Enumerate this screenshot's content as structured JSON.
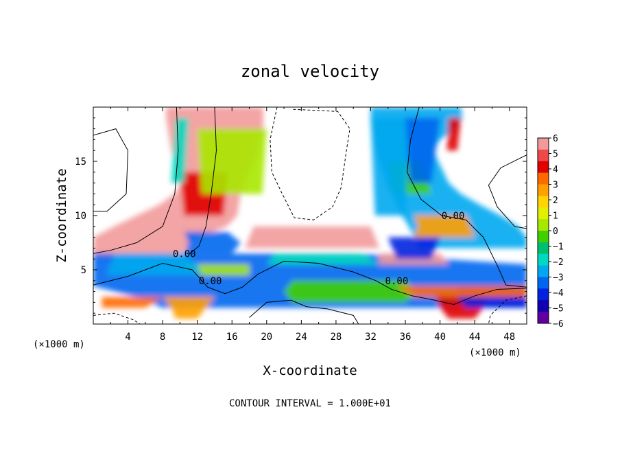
{
  "chart_data": {
    "type": "heatmap",
    "title": "zonal velocity",
    "xlabel": "X-coordinate",
    "ylabel": "Z-coordinate",
    "x_unit": "(×1000 m)",
    "x_unit_right": "(×1000 m)",
    "footer": "CONTOUR INTERVAL = 1.000E+01",
    "xlim": [
      0,
      50
    ],
    "ylim": [
      0,
      20
    ],
    "xticks": [
      4,
      8,
      12,
      16,
      20,
      24,
      28,
      32,
      36,
      40,
      44,
      48
    ],
    "yticks": [
      5,
      10,
      15
    ],
    "colorbar": {
      "min": -6,
      "max": 6,
      "levels": [
        6,
        5,
        4,
        3,
        2,
        1,
        0,
        -1,
        -2,
        -3,
        -4,
        -5,
        -6
      ],
      "colors": [
        "#f29a9a",
        "#ee4848",
        "#e00000",
        "#ff6a00",
        "#ffa000",
        "#ffd400",
        "#e0f000",
        "#a8e800",
        "#40d000",
        "#00c070",
        "#00d8c0",
        "#00a8f0",
        "#0066f0",
        "#0022e0",
        "#1000b0",
        "#6000a0"
      ]
    },
    "contour_labels": [
      {
        "text": "0.00",
        "x": 10.5,
        "y": 6.5
      },
      {
        "text": "0.00",
        "x": 13.5,
        "y": 4.0
      },
      {
        "text": "0.00",
        "x": 35.0,
        "y": 4.0
      },
      {
        "text": "0.00",
        "x": 41.5,
        "y": 10.0
      }
    ],
    "regions": [
      {
        "kind": "band",
        "xs": [
          [
            8.4,
            19.6
          ],
          [
            8.4,
            19.6
          ],
          [
            8.6,
            19.6
          ],
          [
            8.8,
            19.2
          ],
          [
            9.0,
            19.0
          ],
          [
            9.4,
            18.6
          ],
          [
            9.8,
            18.0
          ],
          [
            10.2,
            17.6
          ],
          [
            9.4,
            17.0
          ],
          [
            7.6,
            16.8
          ],
          [
            5.0,
            16.6
          ],
          [
            2.4,
            15.4
          ],
          [
            0.0,
            12.0
          ],
          [
            0.0,
            11.0
          ],
          [
            0.0,
            9.0
          ]
        ],
        "ys": [
          20,
          19,
          18,
          17,
          16,
          15,
          14,
          13,
          12,
          11,
          10,
          9,
          8,
          7,
          6
        ]
      },
      {
        "kind": "band",
        "xs": [
          [
            32.0,
            42.4
          ],
          [
            32.0,
            42.6
          ],
          [
            32.2,
            42.0
          ],
          [
            32.4,
            40.0
          ],
          [
            32.6,
            39.2
          ],
          [
            33.0,
            39.8
          ],
          [
            33.4,
            40.4
          ],
          [
            33.8,
            41.0
          ],
          [
            34.4,
            42.4
          ],
          [
            35.0,
            44.6
          ],
          [
            35.6,
            47.0
          ],
          [
            36.4,
            49.0
          ],
          [
            37.0,
            50.0
          ],
          [
            37.6,
            50.0
          ]
        ],
        "ys": [
          20,
          19,
          18,
          17,
          16,
          15,
          14,
          13,
          12,
          11,
          10,
          9,
          8,
          7
        ]
      },
      {
        "kind": "band",
        "xs": [
          [
            0.0,
            30.0
          ],
          [
            0.0,
            50.0
          ],
          [
            0.0,
            50.0
          ],
          [
            0.0,
            50.0
          ],
          [
            5.0,
            50.0
          ],
          [
            8.0,
            50.0
          ]
        ],
        "ys": [
          6.5,
          5.5,
          4.5,
          3.5,
          2.5,
          1.5
        ]
      },
      {
        "kind": "band",
        "xs": [
          [
            39.5,
            45.5
          ],
          [
            40.0,
            45.0
          ],
          [
            41.0,
            44.0
          ]
        ],
        "ys": [
          2.5,
          1.5,
          0.5
        ]
      },
      {
        "kind": "band",
        "xs": [
          [
            8.0,
            14.0
          ],
          [
            9.0,
            13.0
          ],
          [
            9.5,
            12.0
          ]
        ],
        "ys": [
          2.5,
          1.5,
          0.5
        ]
      },
      {
        "kind": "band",
        "xs": [
          [
            23.0,
            36.0
          ],
          [
            22.0,
            37.5
          ],
          [
            23.0,
            36.0
          ]
        ],
        "ys": [
          4.0,
          3.0,
          2.0
        ]
      },
      {
        "kind": "band",
        "xs": [
          [
            42.0,
            50.0
          ],
          [
            42.0,
            50.0
          ],
          [
            43.0,
            50.0
          ]
        ],
        "ys": [
          3.5,
          2.5,
          1.5
        ]
      },
      {
        "kind": "band",
        "xs": [
          [
            1.0,
            8.0
          ],
          [
            1.0,
            6.0
          ]
        ],
        "ys": [
          2.5,
          1.5
        ]
      },
      {
        "kind": "band",
        "xs": [
          [
            10.0,
            18.0
          ],
          [
            12.0,
            18.0
          ]
        ],
        "ys": [
          5.5,
          4.5
        ]
      },
      {
        "kind": "band",
        "xs": [
          [
            21.0,
            31.0
          ],
          [
            20.0,
            33.0
          ]
        ],
        "ys": [
          6.5,
          5.5
        ]
      },
      {
        "kind": "band",
        "xs": [
          [
            33.0,
            40.0
          ],
          [
            33.0,
            41.0
          ]
        ],
        "ys": [
          6.5,
          5.5
        ]
      },
      {
        "kind": "band",
        "xs": [
          [
            2.5,
            10.5
          ],
          [
            2.0,
            12.0
          ],
          [
            1.5,
            12.5
          ]
        ],
        "ys": [
          6.5,
          5.5,
          4.5
        ]
      },
      {
        "kind": "band",
        "xs": [
          [
            10.5,
            15.5
          ],
          [
            11.0,
            17.0
          ],
          [
            10.5,
            16.0
          ]
        ],
        "ys": [
          8.5,
          7.5,
          6.5
        ]
      },
      {
        "kind": "band",
        "xs": [
          [
            10.0,
            15.5
          ],
          [
            10.5,
            15.0
          ]
        ],
        "ys": [
          14.0,
          10.0
        ]
      },
      {
        "kind": "band",
        "xs": [
          [
            37.0,
            43.0
          ],
          [
            37.5,
            43.5
          ],
          [
            37.0,
            44.0
          ]
        ],
        "ys": [
          10.0,
          9.0,
          8.0
        ]
      },
      {
        "kind": "band",
        "xs": [
          [
            34.0,
            38.0
          ],
          [
            34.5,
            39.0
          ]
        ],
        "ys": [
          15.0,
          12.0
        ]
      },
      {
        "kind": "band",
        "xs": [
          [
            34.0,
            40.0
          ],
          [
            35.0,
            39.0
          ]
        ],
        "ys": [
          8.0,
          6.0
        ]
      },
      {
        "kind": "band",
        "xs": [
          [
            35.0,
            50.0
          ],
          [
            36.0,
            50.0
          ],
          [
            37.0,
            50.0
          ]
        ],
        "ys": [
          3.5,
          3.0,
          2.5
        ]
      },
      {
        "kind": "band",
        "xs": [
          [
            12.0,
            20.0
          ],
          [
            12.5,
            19.5
          ]
        ],
        "ys": [
          18.0,
          12.0
        ]
      },
      {
        "kind": "band",
        "xs": [
          [
            9.5,
            11.0
          ],
          [
            9.0,
            10.5
          ]
        ],
        "ys": [
          19.0,
          13.0
        ]
      },
      {
        "kind": "band",
        "xs": [
          [
            18.5,
            32.0
          ],
          [
            18.0,
            32.5
          ],
          [
            17.5,
            33.0
          ]
        ],
        "ys": [
          9.0,
          8.0,
          7.0
        ]
      },
      {
        "kind": "band",
        "xs": [
          [
            32.0,
            36.5
          ],
          [
            32.5,
            36.0
          ]
        ],
        "ys": [
          19.0,
          10.0
        ]
      },
      {
        "kind": "band",
        "xs": [
          [
            36.0,
            40.0
          ],
          [
            36.5,
            39.0
          ]
        ],
        "ys": [
          19.0,
          13.0
        ]
      },
      {
        "kind": "band",
        "xs": [
          [
            41.0,
            42.4
          ],
          [
            40.8,
            42.0
          ]
        ],
        "ys": [
          19.0,
          16.0
        ]
      }
    ]
  }
}
